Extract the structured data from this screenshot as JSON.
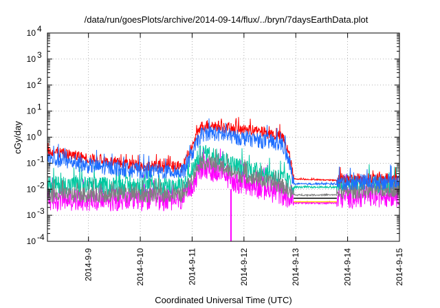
{
  "chart_data": {
    "type": "line",
    "title": "/data/run/goesPlots/archive/2014-09-14/flux/../bryn/7daysEarthData.plot",
    "xlabel": "Coordinated Universal Time (UTC)",
    "ylabel": "cGy/day",
    "yscale": "log",
    "ylim_exp": [
      -4,
      4
    ],
    "y_tick_labels": [
      {
        "base": "10",
        "exp": "-4"
      },
      {
        "base": "10",
        "exp": "-3"
      },
      {
        "base": "10",
        "exp": "-2"
      },
      {
        "base": "10",
        "exp": "-1"
      },
      {
        "base": "10",
        "exp": "0"
      },
      {
        "base": "10",
        "exp": "1"
      },
      {
        "base": "10",
        "exp": "2"
      },
      {
        "base": "10",
        "exp": "3"
      },
      {
        "base": "10",
        "exp": "4"
      }
    ],
    "xlim": [
      "2014-09-08T05:00",
      "2014-09-15T00:00"
    ],
    "x_ticks": [
      "2014-9-9",
      "2014-9-10",
      "2014-9-11",
      "2014-9-12",
      "2014-9-13",
      "2014-9-14",
      "2014-9-15"
    ],
    "grid": true,
    "series": [
      {
        "color": "#ff00ff",
        "noise": 0.45,
        "points": [
          [
            "2014-09-08T05:00",
            0.004
          ],
          [
            "2014-09-10T20:00",
            0.004
          ],
          [
            "2014-09-11T04:00",
            0.06
          ],
          [
            "2014-09-11T12:00",
            0.05
          ],
          [
            "2014-09-11T20:00",
            0.02
          ],
          [
            "2014-09-12T10:00",
            0.01
          ],
          [
            "2014-09-12T19:00",
            0.006
          ],
          [
            "2014-09-12T23:00",
            0.003
          ],
          [
            "2014-09-13T19:00",
            0.003
          ],
          [
            "2014-09-13T20:00",
            0.005
          ],
          [
            "2014-09-15T00:00",
            0.006
          ]
        ]
      },
      {
        "color": "#000000",
        "noise": 0.0,
        "points": [
          [
            "2014-09-12T23:00",
            0.0045
          ],
          [
            "2014-09-13T19:00",
            0.0045
          ]
        ]
      },
      {
        "color": "#ffd700",
        "noise": 0.0,
        "points": [
          [
            "2014-09-12T23:00",
            0.0033
          ],
          [
            "2014-09-13T19:00",
            0.0033
          ]
        ]
      },
      {
        "color": "#00c8a0",
        "noise": 0.35,
        "points": [
          [
            "2014-09-08T05:00",
            0.015
          ],
          [
            "2014-09-10T20:00",
            0.012
          ],
          [
            "2014-09-11T04:00",
            0.25
          ],
          [
            "2014-09-11T12:00",
            0.18
          ],
          [
            "2014-09-11T20:00",
            0.08
          ],
          [
            "2014-09-12T10:00",
            0.04
          ],
          [
            "2014-09-12T19:00",
            0.025
          ],
          [
            "2014-09-12T23:00",
            0.012
          ],
          [
            "2014-09-13T19:00",
            0.012
          ],
          [
            "2014-09-13T20:00",
            0.015
          ],
          [
            "2014-09-15T00:00",
            0.016
          ]
        ]
      },
      {
        "color": "#808080",
        "noise": 0.3,
        "points": [
          [
            "2014-09-08T05:00",
            0.006
          ],
          [
            "2014-09-10T20:00",
            0.006
          ],
          [
            "2014-09-11T04:00",
            0.12
          ],
          [
            "2014-09-11T12:00",
            0.08
          ],
          [
            "2014-09-11T20:00",
            0.04
          ],
          [
            "2014-09-12T10:00",
            0.02
          ],
          [
            "2014-09-12T19:00",
            0.012
          ],
          [
            "2014-09-12T23:00",
            0.006
          ],
          [
            "2014-09-13T19:00",
            0.006
          ],
          [
            "2014-09-13T20:00",
            0.008
          ],
          [
            "2014-09-15T00:00",
            0.01
          ]
        ]
      },
      {
        "color": "#ff0000",
        "noise": 0.22,
        "points": [
          [
            "2014-09-08T05:00",
            0.3
          ],
          [
            "2014-09-09T00:00",
            0.15
          ],
          [
            "2014-09-10T00:00",
            0.08
          ],
          [
            "2014-09-10T20:00",
            0.07
          ],
          [
            "2014-09-11T04:00",
            2.5
          ],
          [
            "2014-09-11T08:00",
            3.0
          ],
          [
            "2014-09-11T20:00",
            2.0
          ],
          [
            "2014-09-12T10:00",
            1.5
          ],
          [
            "2014-09-12T18:00",
            1.0
          ],
          [
            "2014-09-12T21:00",
            0.2
          ],
          [
            "2014-09-12T23:00",
            0.025
          ],
          [
            "2014-09-13T19:00",
            0.022
          ],
          [
            "2014-09-13T20:00",
            0.025
          ],
          [
            "2014-09-15T00:00",
            0.025
          ]
        ]
      },
      {
        "color": "#1e6eff",
        "noise": 0.3,
        "points": [
          [
            "2014-09-08T05:00",
            0.15
          ],
          [
            "2014-09-09T00:00",
            0.08
          ],
          [
            "2014-09-10T00:00",
            0.05
          ],
          [
            "2014-09-10T20:00",
            0.045
          ],
          [
            "2014-09-11T04:00",
            1.2
          ],
          [
            "2014-09-11T08:00",
            1.5
          ],
          [
            "2014-09-11T20:00",
            1.0
          ],
          [
            "2014-09-12T10:00",
            0.7
          ],
          [
            "2014-09-12T18:00",
            0.5
          ],
          [
            "2014-09-12T21:00",
            0.1
          ],
          [
            "2014-09-12T23:00",
            0.016
          ],
          [
            "2014-09-13T19:00",
            0.016
          ],
          [
            "2014-09-13T20:00",
            0.018
          ],
          [
            "2014-09-15T00:00",
            0.02
          ]
        ]
      }
    ],
    "annotations": [
      {
        "type": "dropout",
        "x": "2014-09-11T18:00",
        "color": "#ff00ff"
      }
    ]
  }
}
